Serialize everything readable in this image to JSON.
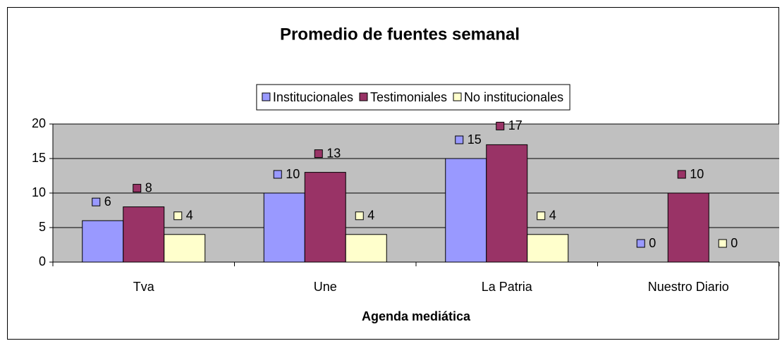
{
  "chart_data": {
    "type": "bar",
    "title": "Promedio de fuentes semanal",
    "x_label": "Agenda mediática",
    "categories": [
      "Tva",
      "Une",
      "La Patria",
      "Nuestro Diario"
    ],
    "series": [
      {
        "name": "Institucionales",
        "color": "#9999ff",
        "values": [
          6,
          10,
          15,
          0
        ]
      },
      {
        "name": "Testimoniales",
        "color": "#993366",
        "values": [
          8,
          13,
          17,
          10
        ]
      },
      {
        "name": "No institucionales",
        "color": "#ffffcc",
        "values": [
          4,
          4,
          4,
          0
        ]
      }
    ],
    "ylim": [
      0,
      20
    ],
    "yticks": [
      0,
      5,
      10,
      15,
      20
    ],
    "grid": true,
    "legend": "top"
  }
}
